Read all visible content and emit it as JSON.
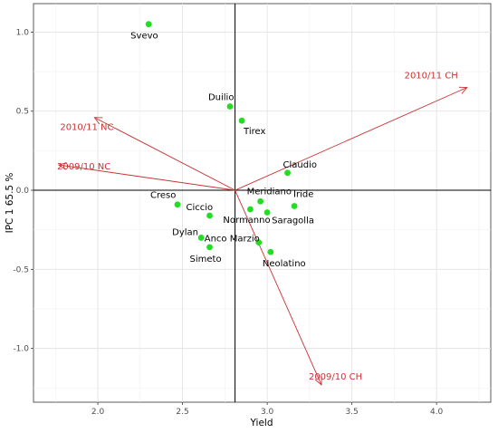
{
  "chart_data": {
    "type": "scatter",
    "title": "",
    "xlabel": "Yield",
    "ylabel": "IPC 1 65.5 %",
    "xlim": [
      1.62,
      4.32
    ],
    "ylim": [
      -1.34,
      1.18
    ],
    "x_ticks": [
      2.0,
      2.5,
      3.0,
      3.5,
      4.0
    ],
    "x_tick_labels": [
      "2.0",
      "2.5",
      "3.0",
      "3.5",
      "4.0"
    ],
    "y_ticks": [
      1.0,
      0.5,
      0.0,
      -0.5,
      -1.0
    ],
    "y_tick_labels": [
      "1.0",
      "0.5",
      "0.0",
      "-0.5",
      "-1.0"
    ],
    "grid": true,
    "reference_lines": {
      "x": 2.81,
      "y": 0.0
    },
    "vector_origin": [
      2.81,
      0.0
    ],
    "point_color": "#22dd22",
    "vector_color": "#c83232",
    "points": [
      {
        "label": "Svevo",
        "x": 2.3,
        "y": 1.05
      },
      {
        "label": "Duilio",
        "x": 2.78,
        "y": 0.53
      },
      {
        "label": "Tirex",
        "x": 2.85,
        "y": 0.44
      },
      {
        "label": "Claudio",
        "x": 3.12,
        "y": 0.11
      },
      {
        "label": "Creso",
        "x": 2.47,
        "y": -0.09
      },
      {
        "label": "Ciccio",
        "x": 2.66,
        "y": -0.16
      },
      {
        "label": "Meridiano",
        "x": 2.96,
        "y": -0.07
      },
      {
        "label": "Normanno",
        "x": 2.9,
        "y": -0.12
      },
      {
        "label": "Iride",
        "x": 3.16,
        "y": -0.1
      },
      {
        "label": "Saragolla",
        "x": 3.0,
        "y": -0.14
      },
      {
        "label": "Dylan",
        "x": 2.61,
        "y": -0.3
      },
      {
        "label": "Anco Marzio",
        "x": 2.95,
        "y": -0.33
      },
      {
        "label": "Simeto",
        "x": 2.66,
        "y": -0.36
      },
      {
        "label": "Neolatino",
        "x": 3.02,
        "y": -0.39
      }
    ],
    "vectors": [
      {
        "label": "2010/11 CH",
        "x": 4.18,
        "y": 0.65
      },
      {
        "label": "2010/11 NC",
        "x": 1.98,
        "y": 0.46
      },
      {
        "label": "2009/10 NC",
        "x": 1.77,
        "y": 0.16
      },
      {
        "label": "2009/10 CH",
        "x": 3.32,
        "y": -1.23
      }
    ]
  }
}
